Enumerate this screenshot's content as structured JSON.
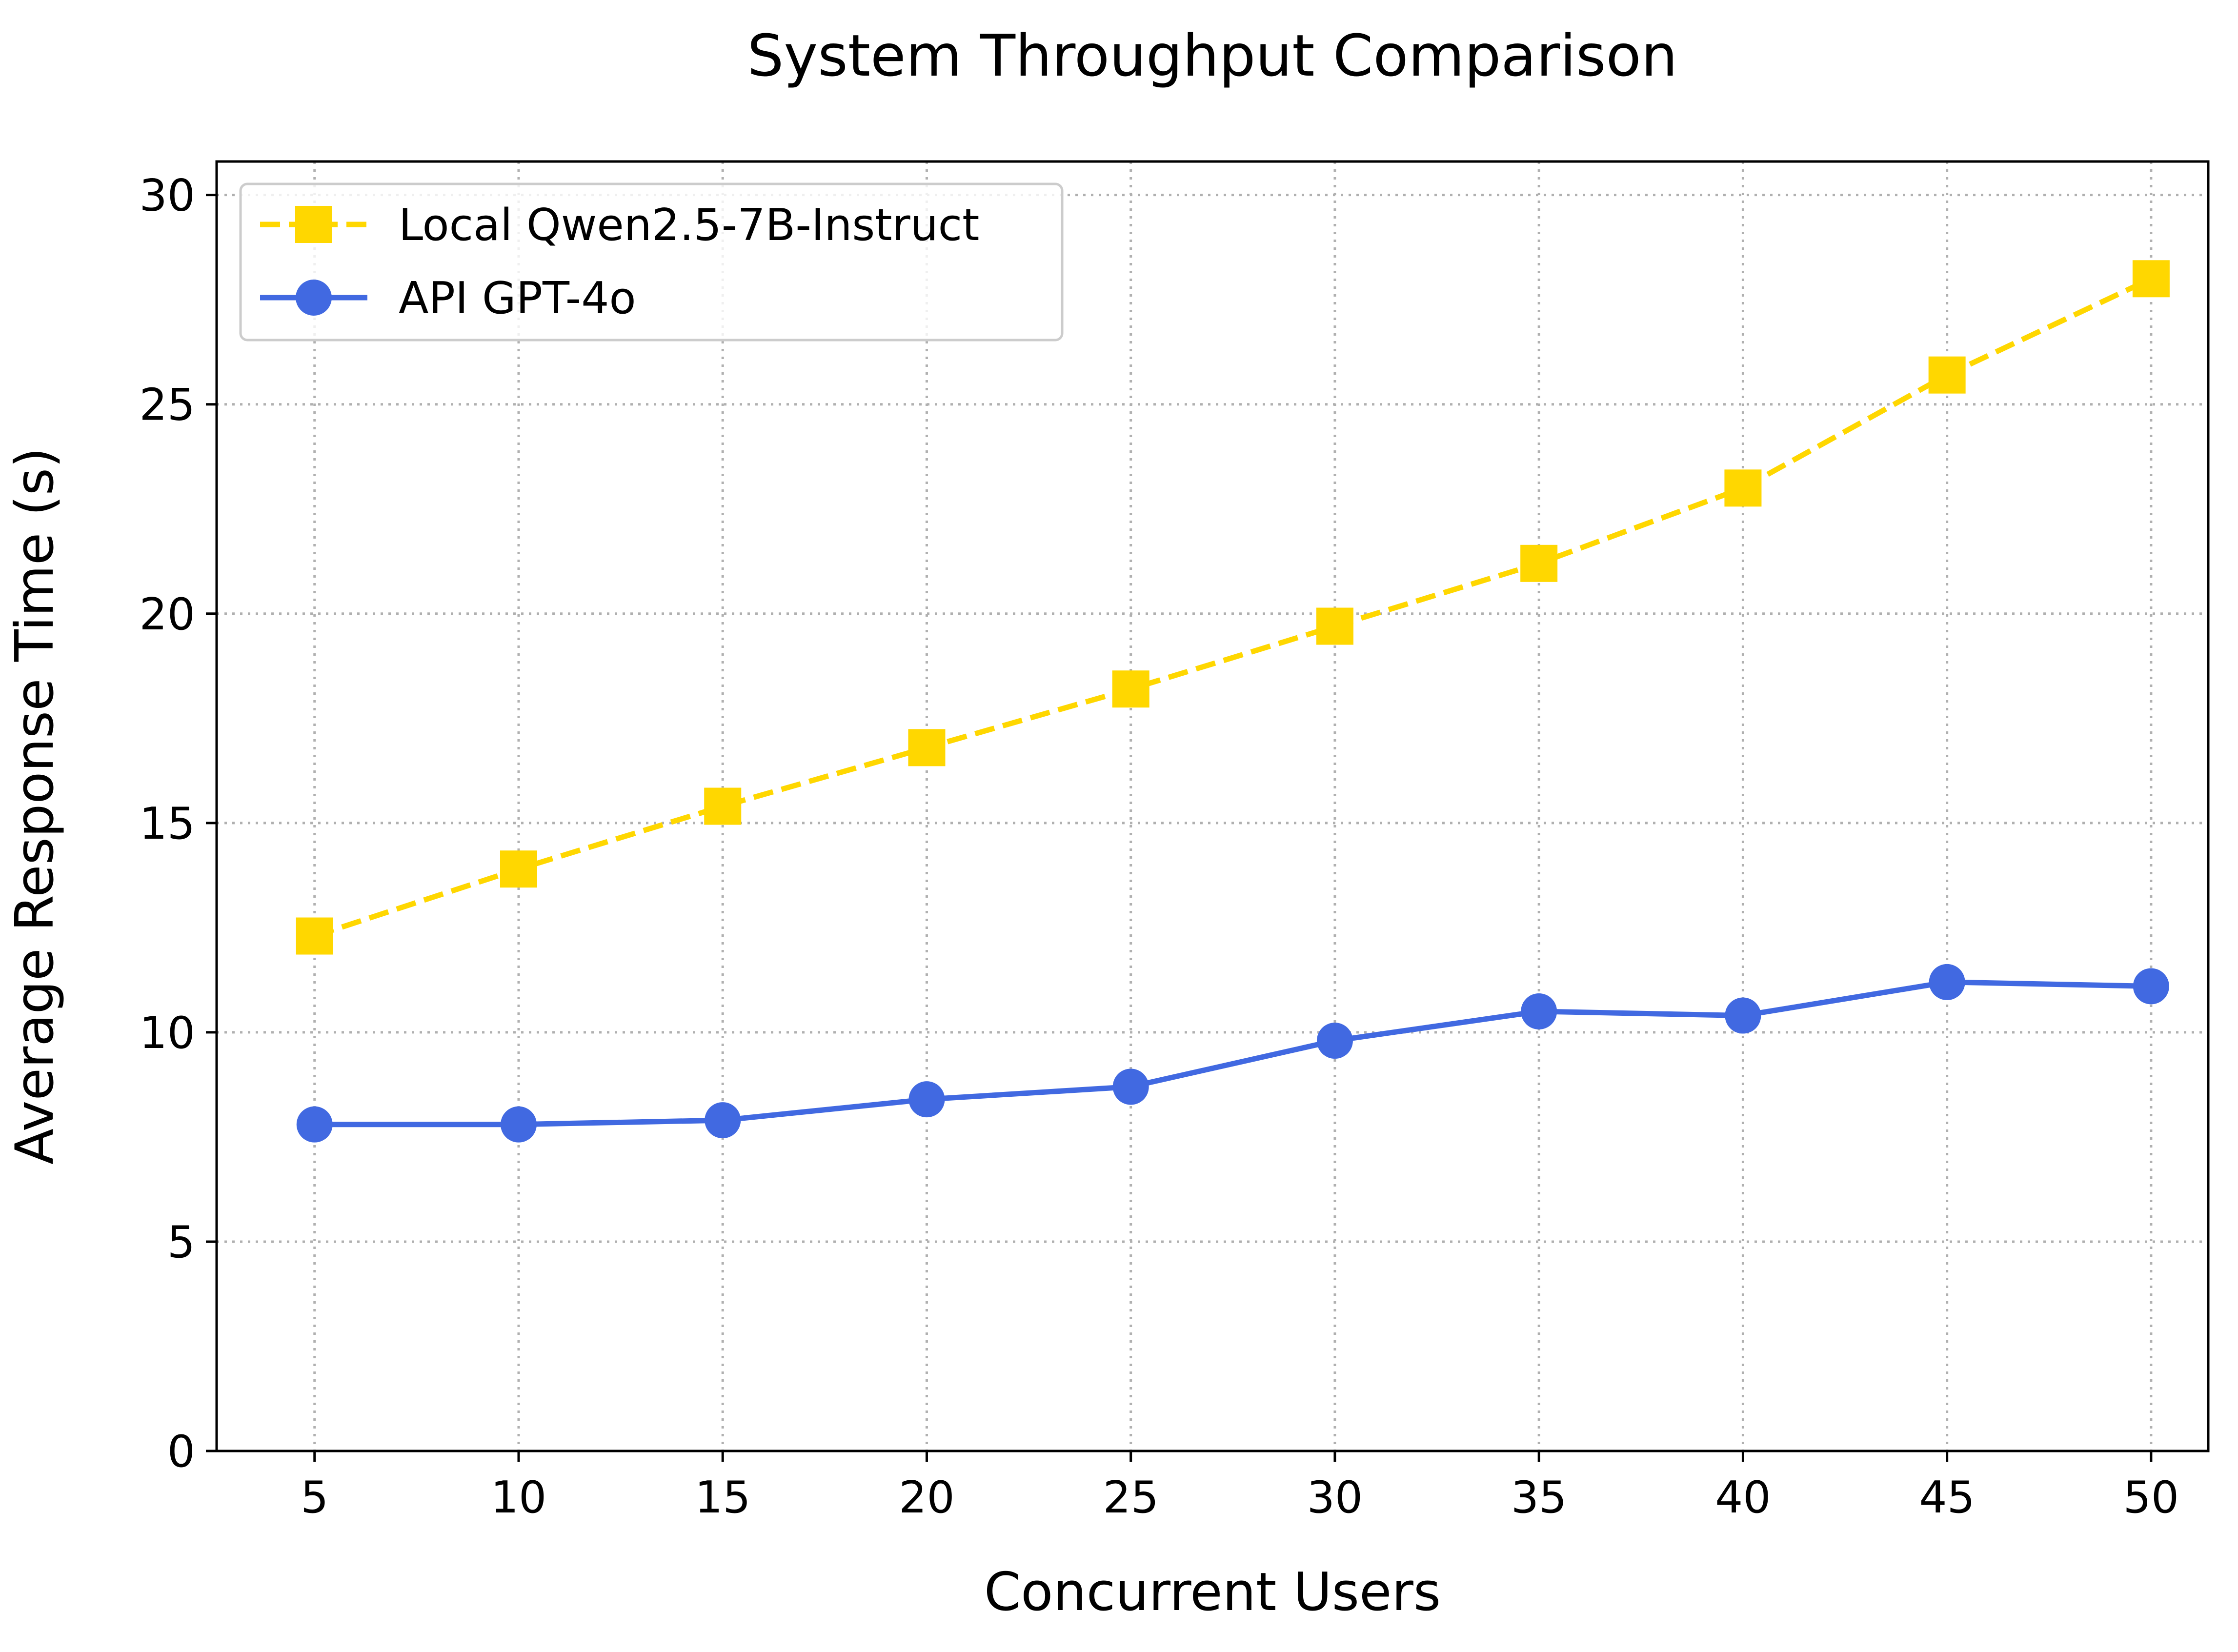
{
  "chart_data": {
    "type": "line",
    "title": "System Throughput Comparison",
    "xlabel": "Concurrent Users",
    "ylabel": "Average Response Time (s)",
    "x": [
      5,
      10,
      15,
      20,
      25,
      30,
      35,
      40,
      45,
      50
    ],
    "xticks": [
      "5",
      "10",
      "15",
      "20",
      "25",
      "30",
      "35",
      "40",
      "45",
      "50"
    ],
    "yticks": [
      "0",
      "5",
      "10",
      "15",
      "20",
      "25",
      "30"
    ],
    "xlim": [
      2.6,
      51.4
    ],
    "ylim": [
      0,
      30.8
    ],
    "grid": true,
    "legend_position": "top-left",
    "series": [
      {
        "name": "Local Qwen2.5-7B-Instruct",
        "values": [
          12.3,
          13.9,
          15.4,
          16.8,
          18.2,
          19.7,
          21.2,
          23.0,
          25.7,
          28.0
        ],
        "color": "#FFD700",
        "line_style": "dashed",
        "marker": "square"
      },
      {
        "name": "API GPT-4o",
        "values": [
          7.8,
          7.8,
          7.9,
          8.4,
          8.7,
          9.8,
          10.5,
          10.4,
          11.2,
          11.1
        ],
        "color": "#4169E1",
        "line_style": "solid",
        "marker": "circle"
      }
    ]
  }
}
